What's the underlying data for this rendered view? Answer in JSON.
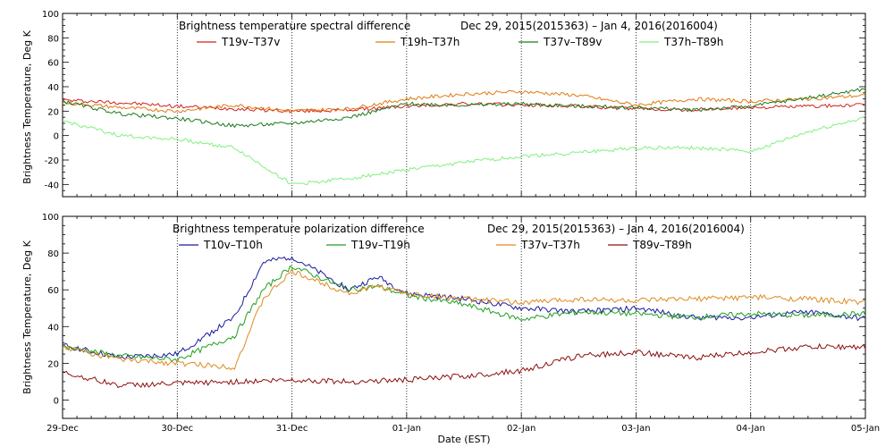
{
  "figure": {
    "xlabel": "Date (EST)"
  },
  "colors": {
    "red": "#d42020",
    "orange": "#e07a10",
    "dkgreen": "#1a7a1a",
    "ltgreen": "#80f080",
    "blue": "#1a1aa0",
    "green": "#1fa01f",
    "orange2": "#e08a20",
    "maroon": "#8b1010"
  },
  "chart_data": [
    {
      "type": "line",
      "title_left": "Brightness temperature spectral difference",
      "title_right": "Dec 29, 2015(2015363) – Jan  4, 2016(2016004)",
      "ylabel": "Brightness Temperature, Deg K",
      "ylim": [
        -50,
        100
      ],
      "yticks": [
        -40,
        -20,
        0,
        20,
        40,
        60,
        80,
        100
      ],
      "xlim": [
        0,
        7
      ],
      "grid": true,
      "legend_position": "top",
      "series": [
        {
          "name": "T19v–T37v",
          "color_key": "red",
          "x": [
            0,
            0.5,
            1,
            1.5,
            2,
            2.5,
            3,
            3.5,
            4,
            4.5,
            5,
            5.5,
            6,
            6.5,
            7
          ],
          "y": [
            29,
            27,
            24,
            22,
            20,
            21,
            24,
            26,
            25,
            24,
            22,
            21,
            23,
            24,
            25
          ]
        },
        {
          "name": "T19h–T37h",
          "color_key": "orange",
          "x": [
            0,
            0.5,
            1,
            1.5,
            2,
            2.5,
            3,
            3.5,
            4,
            4.5,
            5,
            5.5,
            6,
            6.5,
            7
          ],
          "y": [
            27,
            23,
            20,
            25,
            20,
            22,
            30,
            34,
            36,
            33,
            25,
            30,
            28,
            30,
            33
          ]
        },
        {
          "name": "T37v–T89v",
          "color_key": "dkgreen",
          "x": [
            0,
            0.5,
            1,
            1.5,
            2,
            2.5,
            3,
            3.5,
            4,
            4.5,
            5,
            5.5,
            6,
            6.5,
            7
          ],
          "y": [
            28,
            18,
            14,
            8,
            10,
            15,
            26,
            25,
            26,
            24,
            23,
            21,
            24,
            31,
            38
          ]
        },
        {
          "name": "T37h–T89h",
          "color_key": "ltgreen",
          "x": [
            0,
            0.5,
            1,
            1.5,
            2,
            2.5,
            3,
            3.5,
            4,
            4.5,
            5,
            5.5,
            6,
            6.5,
            7
          ],
          "y": [
            12,
            0,
            -3,
            -10,
            -40,
            -35,
            -28,
            -22,
            -17,
            -14,
            -10,
            -10,
            -13,
            3,
            15
          ]
        }
      ]
    },
    {
      "type": "line",
      "title_left": "Brightness temperature polarization difference",
      "title_right": "Dec 29, 2015(2015363) – Jan  4, 2016(2016004)",
      "ylabel": "Brightness Temperature, Deg K",
      "ylim": [
        -10,
        100
      ],
      "yticks": [
        0,
        20,
        40,
        60,
        80,
        100
      ],
      "xlim": [
        0,
        7
      ],
      "xticks": [
        "29-Dec",
        "30-Dec",
        "31-Dec",
        "01-Jan",
        "02-Jan",
        "03-Jan",
        "04-Jan",
        "05-Jan"
      ],
      "grid": true,
      "legend_position": "top",
      "series": [
        {
          "name": "T10v–T10h",
          "color_key": "blue",
          "x": [
            0,
            0.5,
            1,
            1.5,
            1.75,
            2,
            2.5,
            2.75,
            3,
            3.5,
            4,
            4.5,
            5,
            5.5,
            6,
            6.5,
            7
          ],
          "y": [
            30,
            23,
            25,
            45,
            75,
            78,
            60,
            67,
            58,
            55,
            50,
            48,
            50,
            45,
            45,
            48,
            44
          ]
        },
        {
          "name": "T19v–T19h",
          "color_key": "green",
          "x": [
            0,
            0.5,
            1,
            1.5,
            1.75,
            2,
            2.5,
            2.75,
            3,
            3.5,
            4,
            4.5,
            5,
            5.5,
            6,
            6.5,
            7
          ],
          "y": [
            29,
            24,
            22,
            35,
            60,
            73,
            60,
            62,
            57,
            52,
            44,
            48,
            47,
            45,
            47,
            46,
            47
          ]
        },
        {
          "name": "T37v–T37h",
          "color_key": "orange2",
          "x": [
            0,
            0.5,
            1,
            1.5,
            1.75,
            2,
            2.5,
            2.75,
            3,
            3.5,
            4,
            4.5,
            5,
            5.5,
            6,
            6.5,
            7
          ],
          "y": [
            29,
            22,
            20,
            18,
            55,
            70,
            58,
            62,
            58,
            55,
            53,
            55,
            54,
            55,
            56,
            55,
            53
          ]
        },
        {
          "name": "T89v–T89h",
          "color_key": "maroon",
          "x": [
            0,
            0.5,
            1,
            1.5,
            2,
            2.5,
            3,
            3.5,
            4,
            4.5,
            5,
            5.5,
            6,
            6.5,
            7
          ],
          "y": [
            15,
            8,
            9,
            10,
            11,
            10,
            11,
            13,
            16,
            24,
            26,
            23,
            26,
            29,
            29
          ]
        }
      ]
    }
  ]
}
